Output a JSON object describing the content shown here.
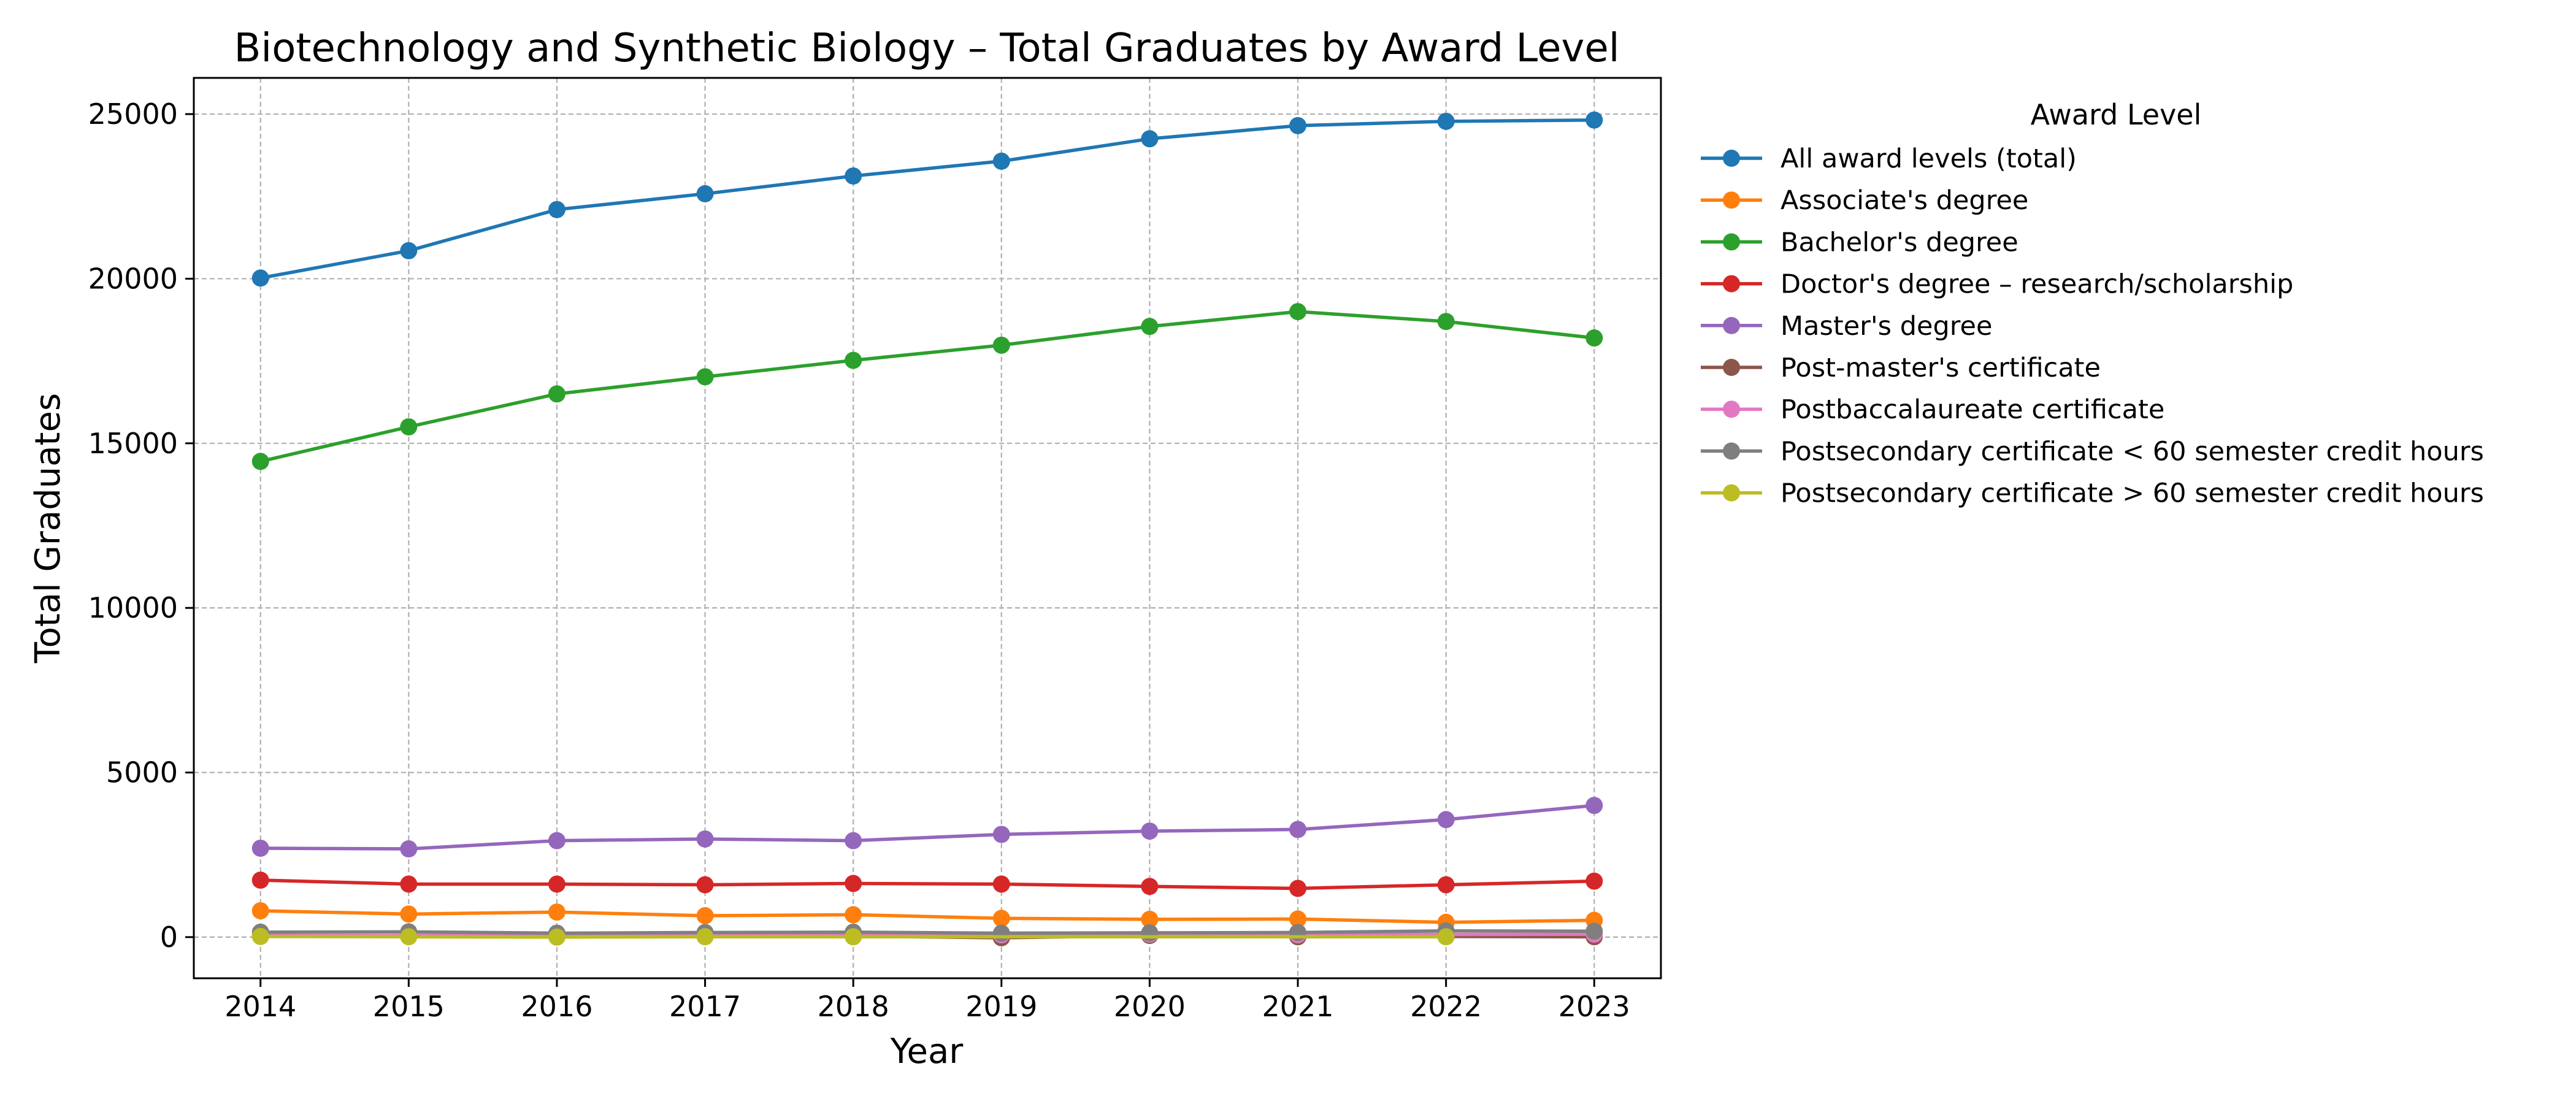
{
  "chart_data": {
    "type": "line",
    "title": "Biotechnology and Synthetic Biology – Total Graduates by Award Level",
    "xlabel": "Year",
    "ylabel": "Total Graduates",
    "x": [
      2014,
      2015,
      2016,
      2017,
      2018,
      2019,
      2020,
      2021,
      2022,
      2023
    ],
    "xticks": [
      "2014",
      "2015",
      "2016",
      "2017",
      "2018",
      "2019",
      "2020",
      "2021",
      "2022",
      "2023"
    ],
    "yticks": [
      "0",
      "5000",
      "10000",
      "15000",
      "20000",
      "25000"
    ],
    "ylim": [
      -1250,
      26100
    ],
    "xlim": [
      2013.55,
      2023.45
    ],
    "grid": true,
    "legend_title": "Award Level",
    "legend_position": "outside-right",
    "series": [
      {
        "name": "All award levels (total)",
        "color": "#1f77b4",
        "values": [
          20020,
          20850,
          22100,
          22580,
          23120,
          23570,
          24250,
          24650,
          24780,
          24820
        ]
      },
      {
        "name": "Associate's degree",
        "color": "#ff7f0e",
        "values": [
          800,
          700,
          760,
          650,
          680,
          570,
          540,
          550,
          450,
          510
        ]
      },
      {
        "name": "Bachelor's degree",
        "color": "#2ca02c",
        "values": [
          14450,
          15500,
          16500,
          17020,
          17520,
          17980,
          18550,
          19000,
          18700,
          18200
        ]
      },
      {
        "name": "Doctor's degree – research/scholarship",
        "color": "#d62728",
        "values": [
          1730,
          1610,
          1610,
          1590,
          1630,
          1610,
          1540,
          1480,
          1590,
          1700
        ]
      },
      {
        "name": "Master's degree",
        "color": "#9467bd",
        "values": [
          2700,
          2680,
          2930,
          2980,
          2930,
          3120,
          3220,
          3270,
          3570,
          4000
        ]
      },
      {
        "name": "Post-master's certificate",
        "color": "#8c564b",
        "values": [
          30,
          40,
          20,
          30,
          30,
          -20,
          50,
          10,
          20,
          10
        ]
      },
      {
        "name": "Postbaccalaureate certificate",
        "color": "#e377c2",
        "values": [
          50,
          50,
          60,
          80,
          90,
          70,
          90,
          70,
          80,
          90
        ]
      },
      {
        "name": "Postsecondary certificate < 60 semester credit hours",
        "color": "#7f7f7f",
        "values": [
          150,
          160,
          120,
          140,
          150,
          120,
          130,
          140,
          190,
          180
        ]
      },
      {
        "name": "Postsecondary certificate > 60 semester credit hours",
        "color": "#bcbd22",
        "values": [
          20,
          10,
          0,
          10,
          10,
          null,
          null,
          null,
          10,
          null
        ]
      }
    ]
  }
}
